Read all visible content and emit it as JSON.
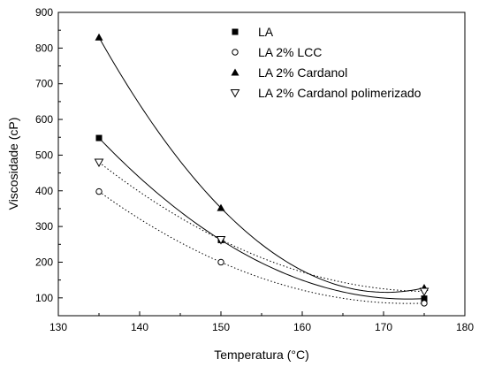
{
  "chart_data": {
    "type": "scatter",
    "title": "",
    "xlabel": "Temperatura (°C)",
    "ylabel": "Viscosidade (cP)",
    "xlim": [
      130,
      180
    ],
    "ylim": [
      50,
      900
    ],
    "xticks": [
      130,
      140,
      150,
      160,
      170,
      180
    ],
    "yticks": [
      100,
      200,
      300,
      400,
      500,
      600,
      700,
      800,
      900
    ],
    "grid": false,
    "legend_position": "top-right",
    "series": [
      {
        "name": "LA",
        "marker": "filled-square",
        "line_style": "solid",
        "x": [
          135,
          150,
          175
        ],
        "y": [
          548,
          262,
          98
        ]
      },
      {
        "name": "LA 2% LCC",
        "marker": "open-circle",
        "line_style": "dotted",
        "x": [
          135,
          150,
          175
        ],
        "y": [
          398,
          200,
          85
        ]
      },
      {
        "name": "LA 2% Cardanol",
        "marker": "filled-triangle-up",
        "line_style": "solid",
        "x": [
          135,
          150,
          175
        ],
        "y": [
          830,
          352,
          128
        ]
      },
      {
        "name": "LA 2% Cardanol polimerizado",
        "marker": "open-triangle-down",
        "line_style": "dotted",
        "x": [
          135,
          150,
          175
        ],
        "y": [
          480,
          263,
          118
        ]
      }
    ]
  }
}
